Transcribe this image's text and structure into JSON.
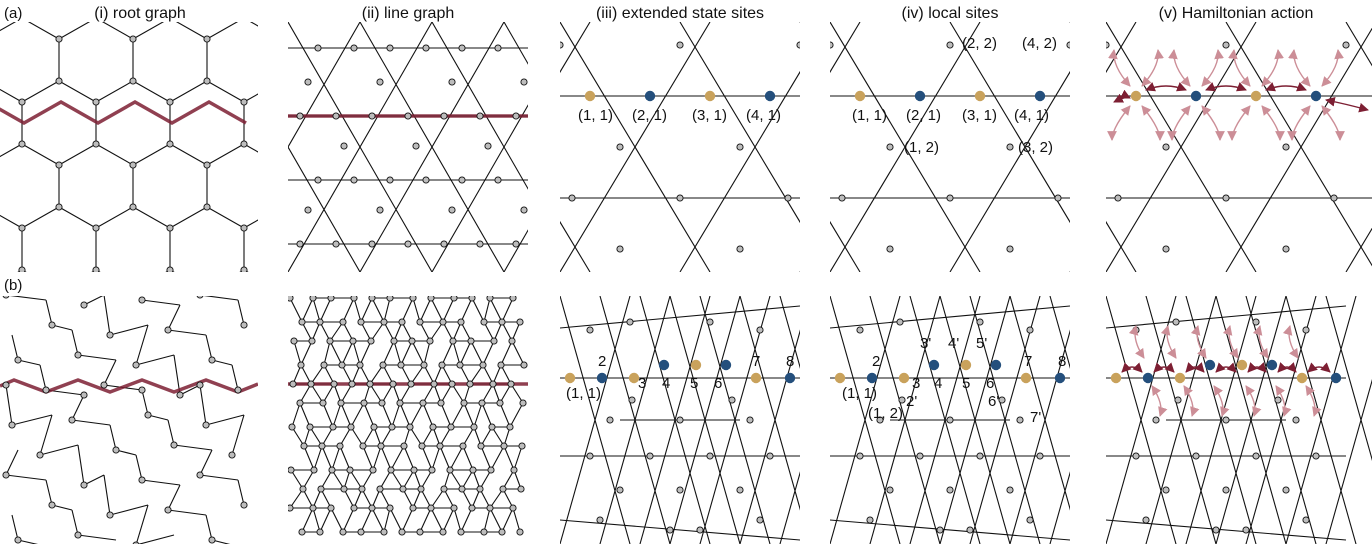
{
  "row_labels": {
    "a": "(a)",
    "b": "(b)"
  },
  "columns": [
    "(i) root graph",
    "(ii) line graph",
    "(iii) extended state sites",
    "(iv) local sites",
    "(v) Hamiltonian action"
  ],
  "colors": {
    "line": "#111111",
    "node_fill": "#bdbdbd",
    "gold": "#c9a25c",
    "blue": "#244f7c",
    "path": "#7d1f33",
    "arrow_light": "#cc8e97"
  },
  "a_iii_labels": [
    "(1, 1)",
    "(2, 1)",
    "(3, 1)",
    "(4, 1)"
  ],
  "a_iv_labels": {
    "gray": [
      "(1, 1)",
      "(2, 1)",
      "(3, 1)",
      "(4, 1)"
    ],
    "black": [
      "(2, 2)",
      "(4, 2)",
      "(1, 2)",
      "(3, 2)"
    ]
  },
  "b_iii_labels": [
    "2",
    "(1, 1)",
    "3",
    "4",
    "5",
    "6",
    "7",
    "8"
  ],
  "b_iv_labels": {
    "gray": [
      "2",
      "(1, 1)",
      "3",
      "4",
      "5",
      "6",
      "7",
      "8"
    ],
    "black": [
      "3'",
      "4'",
      "5'",
      "2'",
      "(1, 2)",
      "6'",
      "7'"
    ]
  }
}
